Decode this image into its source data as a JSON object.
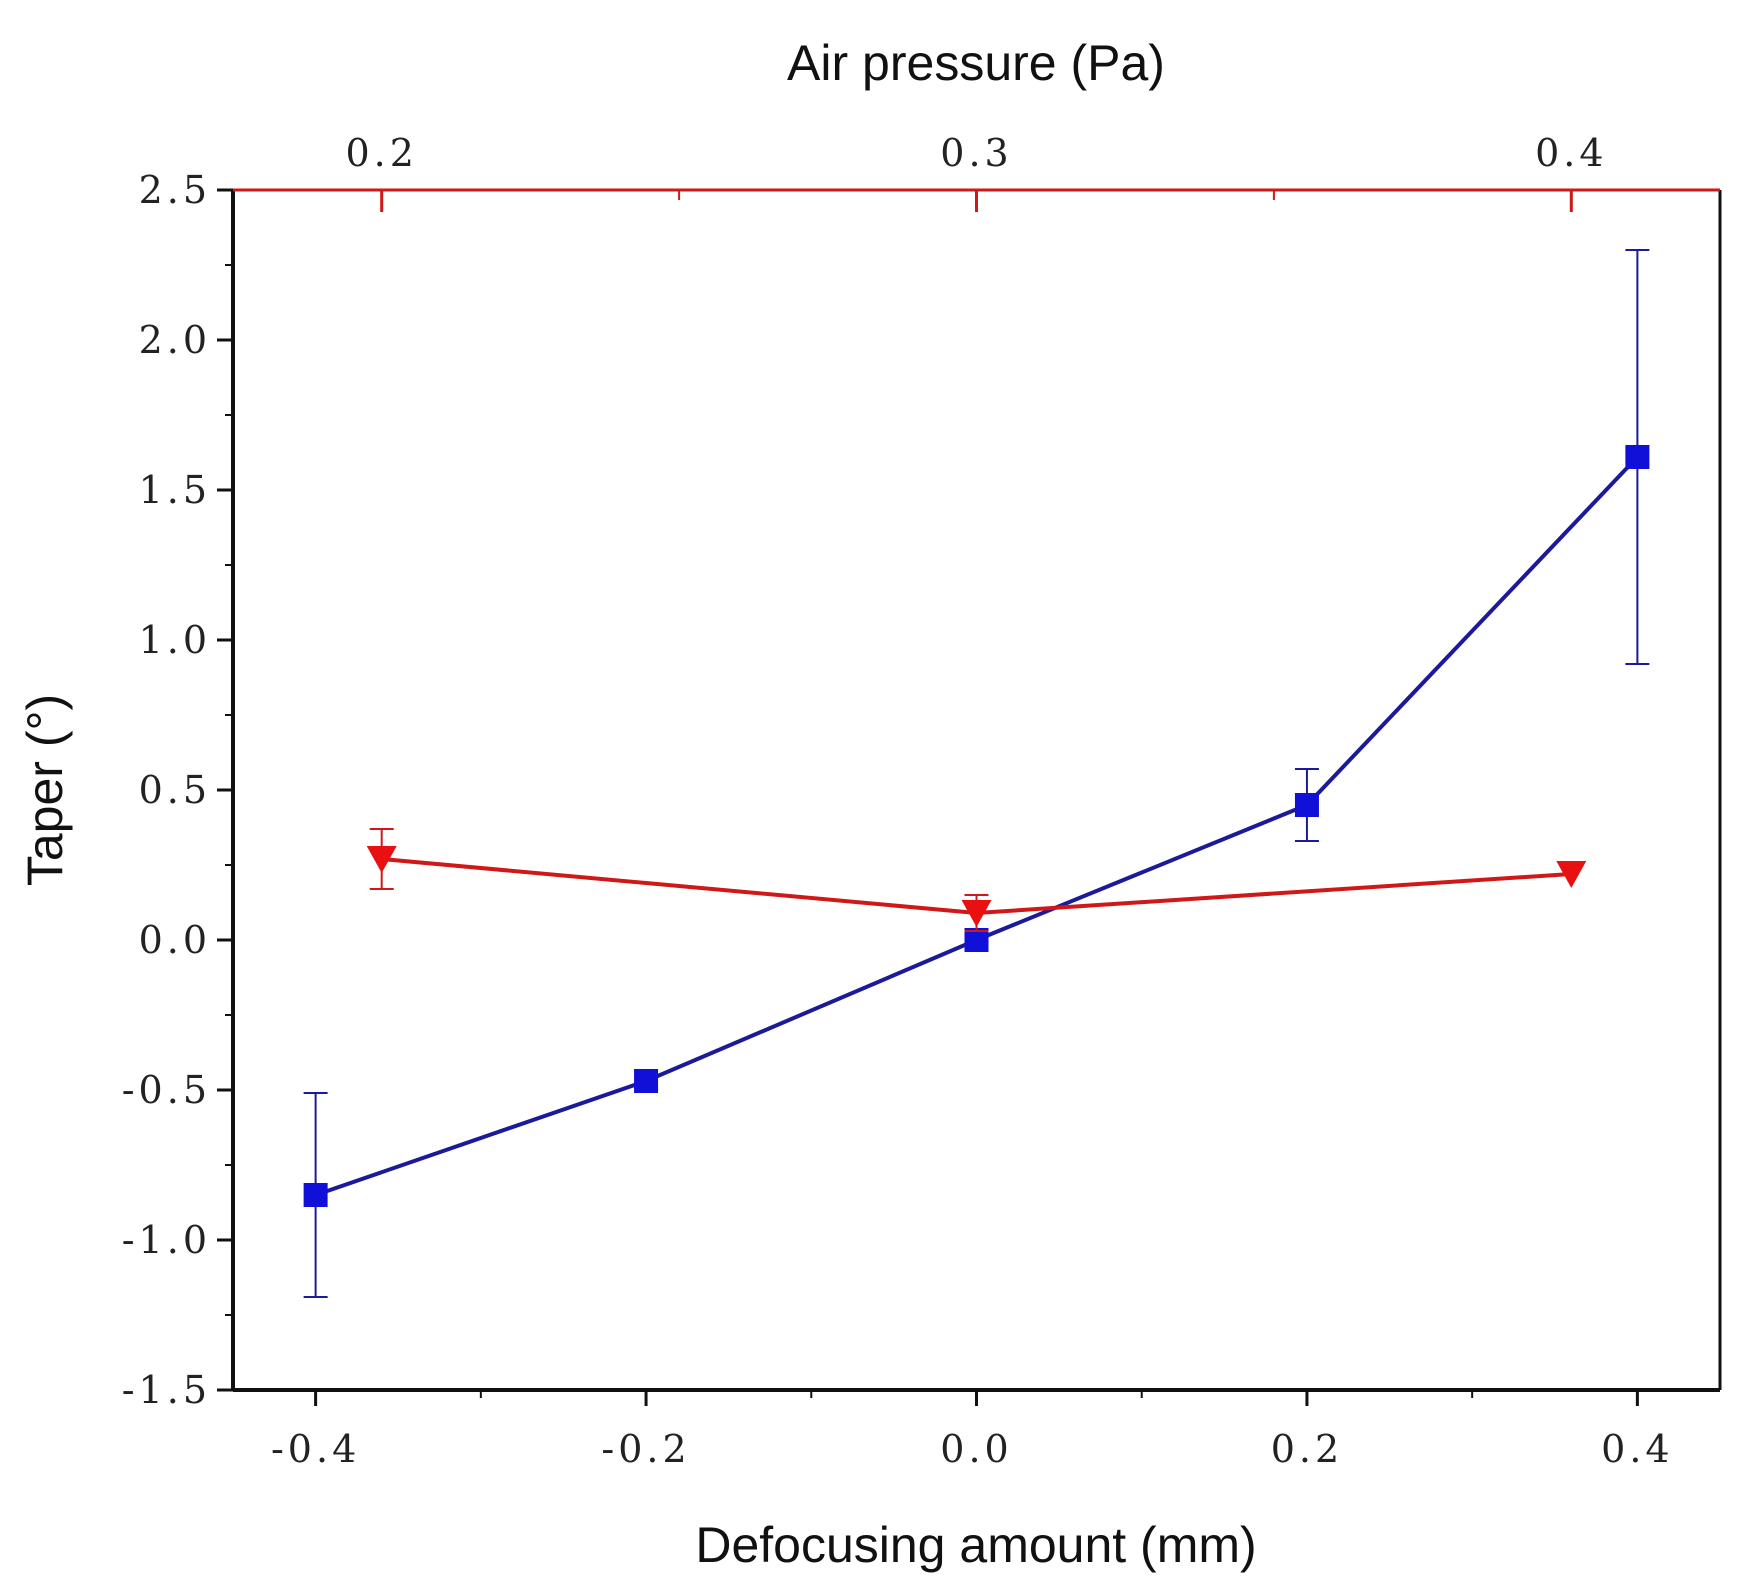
{
  "chart_data": {
    "type": "line",
    "title": "",
    "xlabel": "Defocusing amount (mm)",
    "ylabel": "Taper (°)",
    "x2label": "Air pressure (Pa)",
    "xlim": [
      -0.45,
      0.45
    ],
    "ylim": [
      -1.5,
      2.5
    ],
    "x2lim": [
      0.175,
      0.425
    ],
    "xticks": [
      -0.4,
      -0.2,
      0.0,
      0.2,
      0.4
    ],
    "xtick_labels": [
      "-0.4",
      "-0.2",
      "0.0",
      "0.2",
      "0.4"
    ],
    "yticks": [
      -1.5,
      -1.0,
      -0.5,
      0.0,
      0.5,
      1.0,
      1.5,
      2.0,
      2.5
    ],
    "ytick_labels": [
      "-1.5",
      "-1.0",
      "-0.5",
      "0.0",
      "0.5",
      "1.0",
      "1.5",
      "2.0",
      "2.5"
    ],
    "x2ticks": [
      0.2,
      0.3,
      0.4
    ],
    "x2tick_labels": [
      "0.2",
      "0.3",
      "0.4"
    ],
    "grid": false,
    "series": [
      {
        "name": "Defocusing amount",
        "axis": "bottom",
        "color": "#1010d8",
        "line_color": "#1a1a9a",
        "marker": "square",
        "x": [
          -0.4,
          -0.2,
          0.0,
          0.2,
          0.4
        ],
        "y": [
          -0.85,
          -0.47,
          0.0,
          0.45,
          1.61
        ],
        "error": [
          0.34,
          0.0,
          0.0,
          0.12,
          0.69
        ]
      },
      {
        "name": "Air pressure",
        "axis": "top",
        "color": "#e81010",
        "line_color": "#d01818",
        "marker": "triangle-down",
        "x": [
          0.2,
          0.3,
          0.4
        ],
        "y": [
          0.27,
          0.09,
          0.22
        ],
        "error": [
          0.1,
          0.06,
          0.0
        ]
      }
    ]
  }
}
